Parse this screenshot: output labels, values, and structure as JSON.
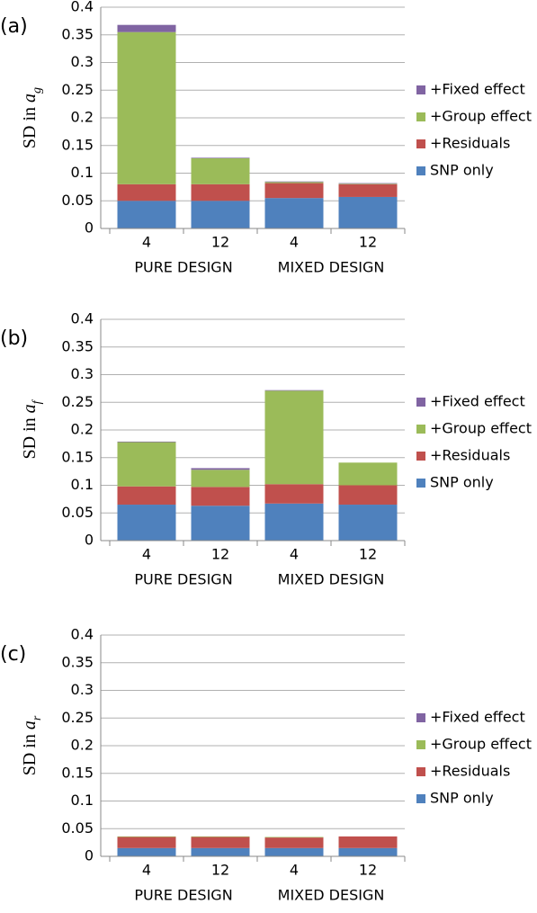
{
  "chart_data": [
    {
      "type": "stacked_bar",
      "panel": "(a)",
      "ylabel": {
        "text": "SD in",
        "symbol": "a",
        "subscript": "g"
      },
      "categories": [
        "4",
        "12",
        "4",
        "12"
      ],
      "category_groups": [
        "PURE DESIGN",
        "MIXED DESIGN"
      ],
      "ylim": [
        0,
        0.4
      ],
      "yticks": [
        0,
        0.05,
        0.1,
        0.15,
        0.2,
        0.25,
        0.3,
        0.35,
        0.4
      ],
      "grid": true,
      "series": [
        {
          "name": "SNP only",
          "color": "#4f81bd",
          "values": [
            0.05,
            0.05,
            0.055,
            0.057
          ]
        },
        {
          "name": "+Residuals",
          "color": "#c0504d",
          "values": [
            0.03,
            0.03,
            0.027,
            0.023
          ]
        },
        {
          "name": "+Group effect",
          "color": "#9bbb59",
          "values": [
            0.275,
            0.047,
            0.002,
            0.001
          ]
        },
        {
          "name": "+Fixed effect",
          "color": "#8064a2",
          "values": [
            0.013,
            0.001,
            0.001,
            0.001
          ]
        }
      ]
    },
    {
      "type": "stacked_bar",
      "panel": "(b)",
      "ylabel": {
        "text": "SD in",
        "symbol": "a",
        "subscript": "f"
      },
      "categories": [
        "4",
        "12",
        "4",
        "12"
      ],
      "category_groups": [
        "PURE DESIGN",
        "MIXED DESIGN"
      ],
      "ylim": [
        0,
        0.4
      ],
      "yticks": [
        0,
        0.05,
        0.1,
        0.15,
        0.2,
        0.25,
        0.3,
        0.35,
        0.4
      ],
      "grid": true,
      "series": [
        {
          "name": "SNP only",
          "color": "#4f81bd",
          "values": [
            0.065,
            0.063,
            0.067,
            0.065
          ]
        },
        {
          "name": "+Residuals",
          "color": "#c0504d",
          "values": [
            0.033,
            0.034,
            0.035,
            0.035
          ]
        },
        {
          "name": "+Group effect",
          "color": "#9bbb59",
          "values": [
            0.08,
            0.031,
            0.169,
            0.041
          ]
        },
        {
          "name": "+Fixed effect",
          "color": "#8064a2",
          "values": [
            0.001,
            0.003,
            0.001,
            0
          ]
        }
      ]
    },
    {
      "type": "stacked_bar",
      "panel": "(c)",
      "ylabel": {
        "text": "SD in",
        "symbol": "a",
        "subscript": "r"
      },
      "categories": [
        "4",
        "12",
        "4",
        "12"
      ],
      "category_groups": [
        "PURE DESIGN",
        "MIXED DESIGN"
      ],
      "ylim": [
        0,
        0.4
      ],
      "yticks": [
        0,
        0.05,
        0.1,
        0.15,
        0.2,
        0.25,
        0.3,
        0.35,
        0.4
      ],
      "grid": true,
      "series": [
        {
          "name": "SNP only",
          "color": "#4f81bd",
          "values": [
            0.015,
            0.015,
            0.015,
            0.015
          ]
        },
        {
          "name": "+Residuals",
          "color": "#c0504d",
          "values": [
            0.02,
            0.02,
            0.019,
            0.021
          ]
        },
        {
          "name": "+Group effect",
          "color": "#9bbb59",
          "values": [
            0.001,
            0.001,
            0.001,
            0
          ]
        },
        {
          "name": "+Fixed effect",
          "color": "#8064a2",
          "values": [
            0,
            0,
            0,
            0
          ]
        }
      ]
    }
  ]
}
